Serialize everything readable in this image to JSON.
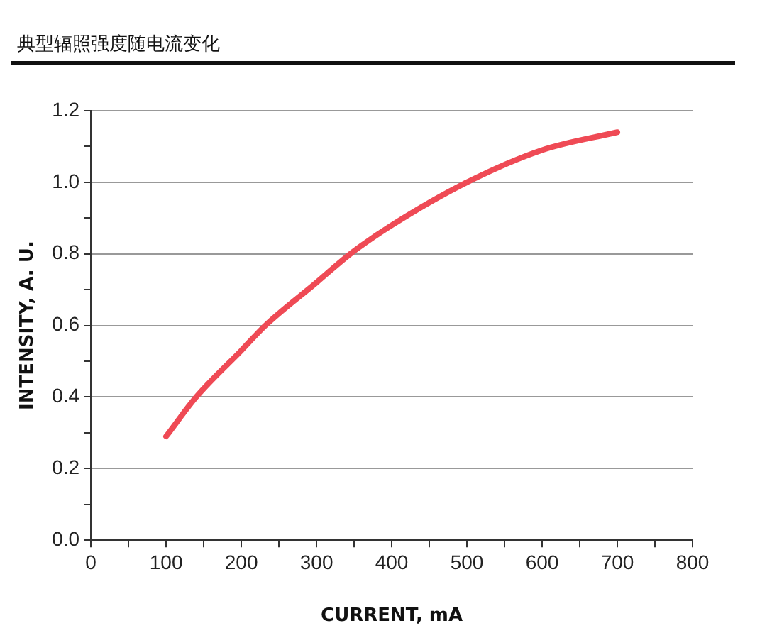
{
  "chart_data": {
    "type": "line",
    "title": "典型辐照强度随电流变化",
    "xlabel": "CURRENT, mA",
    "ylabel": "INTENSITY, A. U.",
    "x": [
      100,
      140,
      200,
      232,
      300,
      345,
      400,
      500,
      600,
      700
    ],
    "series": [
      {
        "color": "#ef4a55",
        "values": [
          0.29,
          0.4,
          0.53,
          0.6,
          0.72,
          0.8,
          0.88,
          1.0,
          1.09,
          1.14
        ]
      }
    ],
    "xlim": [
      0,
      800
    ],
    "xticks": [
      0,
      {
        "value": 50,
        "label": null
      },
      100,
      {
        "value": 150,
        "label": null
      },
      200,
      {
        "value": 250,
        "label": null
      },
      300,
      {
        "value": 350,
        "label": null
      },
      400,
      {
        "value": 450,
        "label": null
      },
      500,
      {
        "value": 550,
        "label": null
      },
      600,
      {
        "value": 650,
        "label": null
      },
      700,
      {
        "value": 750,
        "label": null
      },
      800
    ],
    "ylim": [
      0,
      1.2
    ],
    "yticks": [
      {
        "value": 0,
        "label": "0.0"
      },
      {
        "value": 0.1,
        "label": null
      },
      0.2,
      {
        "value": 0.3,
        "label": null
      },
      0.4,
      {
        "value": 0.5,
        "label": null
      },
      0.6,
      {
        "value": 0.7,
        "label": null
      },
      0.8,
      {
        "value": 0.9,
        "label": null
      },
      {
        "value": 1,
        "label": "1.0"
      },
      {
        "value": 1.1,
        "label": null
      },
      1.2
    ],
    "grid": "y",
    "legend": false,
    "marker": "none",
    "line_style": "solid"
  }
}
